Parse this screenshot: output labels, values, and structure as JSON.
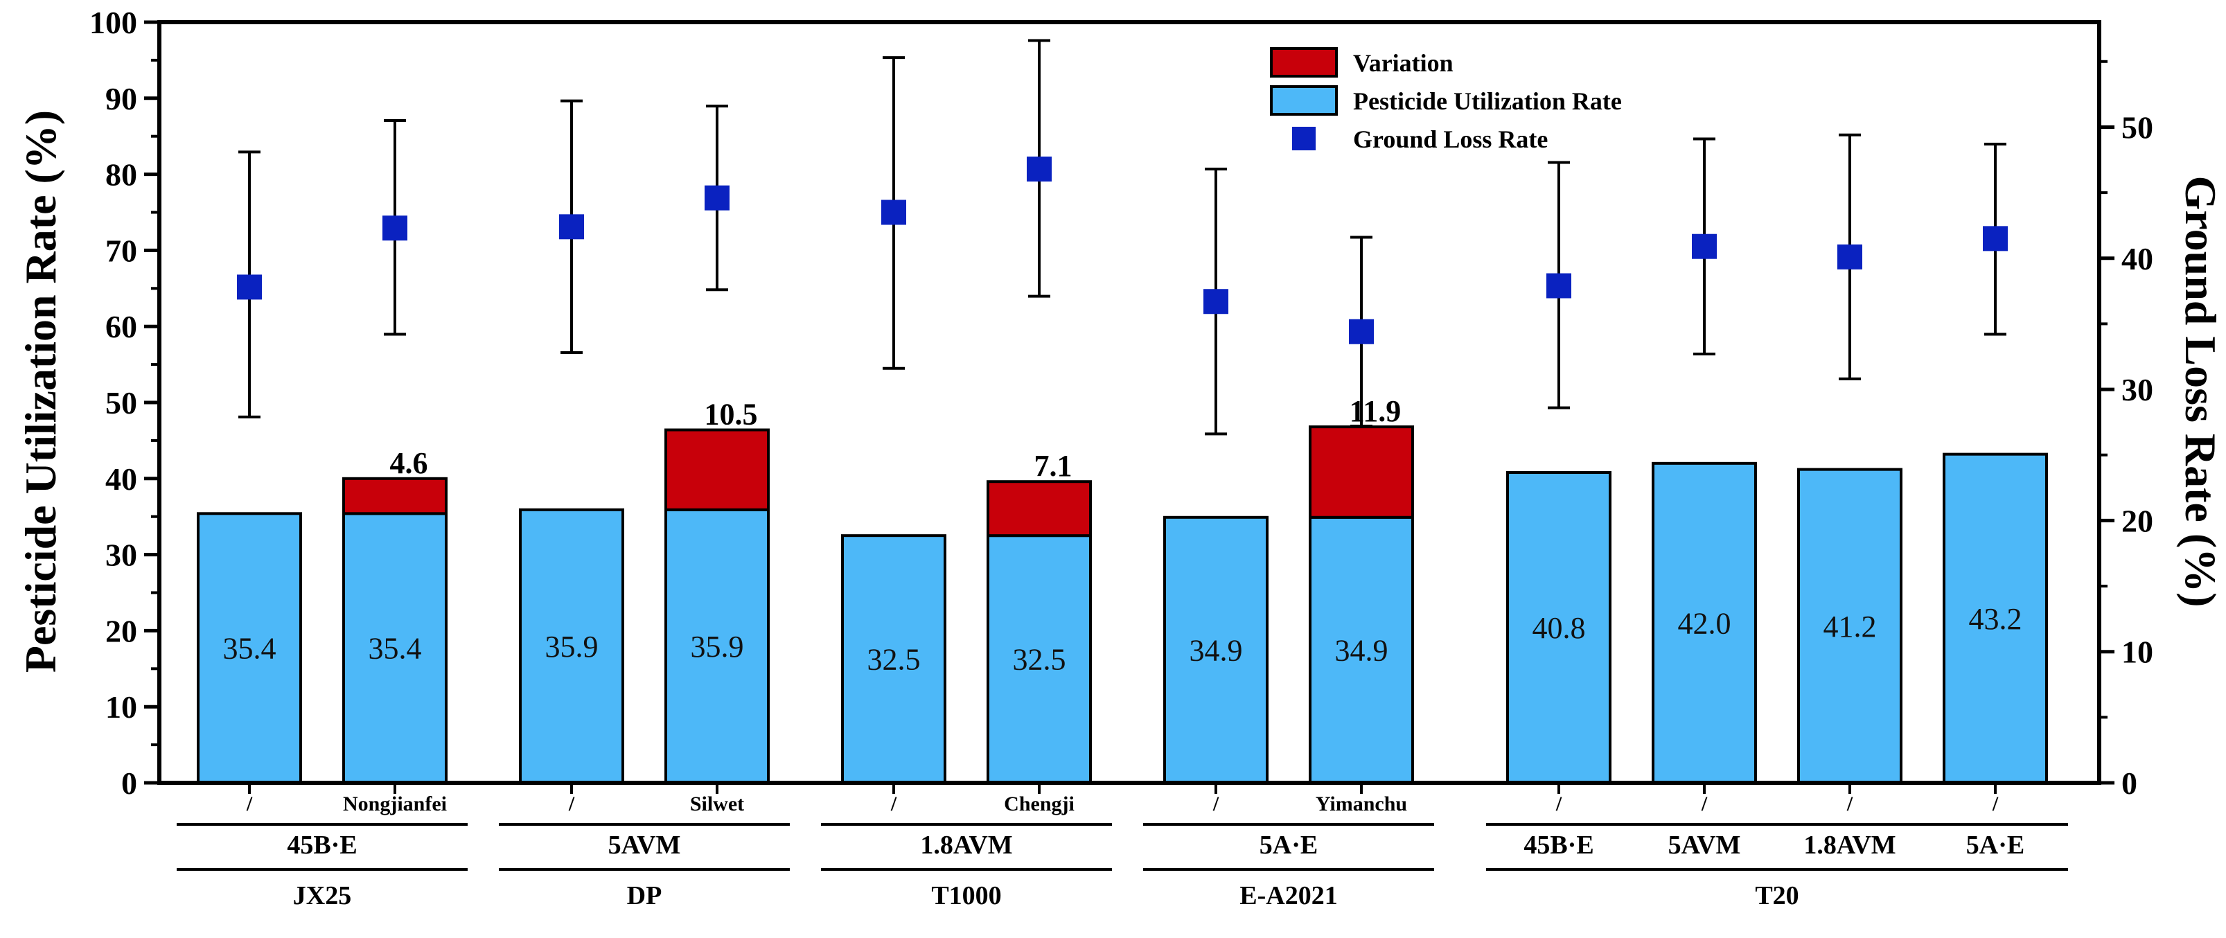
{
  "colors": {
    "utilization": "#4db8f8",
    "variation": "#c8000a",
    "ground_loss": "#0a22c0",
    "axis": "#000000"
  },
  "chart_data": {
    "type": "bar",
    "y_left": {
      "label": "Pesticide Utilization Rate (%)",
      "range": [
        0,
        100
      ],
      "ticks": [
        0,
        10,
        20,
        30,
        40,
        50,
        60,
        70,
        80,
        90,
        100
      ]
    },
    "y_right": {
      "label": "Ground Loss Rate (%)",
      "range": [
        0,
        58
      ],
      "ticks": [
        0,
        10,
        20,
        30,
        40,
        50
      ]
    },
    "legend": {
      "position": "top-center",
      "items": [
        {
          "label": "Variation",
          "kind": "variation"
        },
        {
          "label": "Pesticide Utilization Rate",
          "kind": "utilization"
        },
        {
          "label": "Ground Loss Rate",
          "kind": "ground_loss"
        }
      ]
    },
    "bars": [
      {
        "adjuvant": "/",
        "nozzle": "45B·E",
        "drone": "JX25",
        "utilization": 35.4,
        "utilization_label": "35.4",
        "variation": null,
        "variation_label": "",
        "ground_loss": 37.8,
        "gl_low": 27.9,
        "gl_high": 48.1
      },
      {
        "adjuvant": "Nongjianfei",
        "nozzle": "45B·E",
        "drone": "JX25",
        "utilization": 35.4,
        "utilization_label": "35.4",
        "variation": 4.6,
        "variation_label": "4.6",
        "ground_loss": 42.3,
        "gl_low": 34.2,
        "gl_high": 50.5
      },
      {
        "adjuvant": "/",
        "nozzle": "5AVM",
        "drone": "DP",
        "utilization": 35.9,
        "utilization_label": "35.9",
        "variation": null,
        "variation_label": "",
        "ground_loss": 42.4,
        "gl_low": 32.8,
        "gl_high": 52.0
      },
      {
        "adjuvant": "Silwet",
        "nozzle": "5AVM",
        "drone": "DP",
        "utilization": 35.9,
        "utilization_label": "35.9",
        "variation": 10.5,
        "variation_label": "10.5",
        "ground_loss": 44.6,
        "gl_low": 37.6,
        "gl_high": 51.6
      },
      {
        "adjuvant": "/",
        "nozzle": "1.8AVM",
        "drone": "T1000",
        "utilization": 32.5,
        "utilization_label": "32.5",
        "variation": null,
        "variation_label": "",
        "ground_loss": 43.5,
        "gl_low": 31.6,
        "gl_high": 55.3
      },
      {
        "adjuvant": "Chengji",
        "nozzle": "1.8AVM",
        "drone": "T1000",
        "utilization": 32.5,
        "utilization_label": "32.5",
        "variation": 7.1,
        "variation_label": "7.1",
        "ground_loss": 46.8,
        "gl_low": 37.1,
        "gl_high": 56.6
      },
      {
        "adjuvant": "/",
        "nozzle": "5A·E",
        "drone": "E-A2021",
        "utilization": 34.9,
        "utilization_label": "34.9",
        "variation": null,
        "variation_label": "",
        "ground_loss": 36.7,
        "gl_low": 26.6,
        "gl_high": 46.8
      },
      {
        "adjuvant": "Yimanchu",
        "nozzle": "5A·E",
        "drone": "E-A2021",
        "utilization": 34.9,
        "utilization_label": "34.9",
        "variation": 11.9,
        "variation_label": "11.9",
        "ground_loss": 34.4,
        "gl_low": 27.2,
        "gl_high": 41.6
      },
      {
        "adjuvant": "/",
        "nozzle": "45B·E",
        "drone": "T20",
        "utilization": 40.8,
        "utilization_label": "40.8",
        "variation": null,
        "variation_label": "",
        "ground_loss": 37.9,
        "gl_low": 28.6,
        "gl_high": 47.3
      },
      {
        "adjuvant": "/",
        "nozzle": "5AVM",
        "drone": "T20",
        "utilization": 42.0,
        "utilization_label": "42.0",
        "variation": null,
        "variation_label": "",
        "ground_loss": 40.9,
        "gl_low": 32.7,
        "gl_high": 49.1
      },
      {
        "adjuvant": "/",
        "nozzle": "1.8AVM",
        "drone": "T20",
        "utilization": 41.2,
        "utilization_label": "41.2",
        "variation": null,
        "variation_label": "",
        "ground_loss": 40.1,
        "gl_low": 30.8,
        "gl_high": 49.4
      },
      {
        "adjuvant": "/",
        "nozzle": "5A·E",
        "drone": "T20",
        "utilization": 43.2,
        "utilization_label": "43.2",
        "variation": null,
        "variation_label": "",
        "ground_loss": 41.5,
        "gl_low": 34.2,
        "gl_high": 48.7
      }
    ],
    "nozzle_groups": [
      {
        "label": "45B·E",
        "bars": [
          0,
          1
        ]
      },
      {
        "label": "5AVM",
        "bars": [
          2,
          3
        ]
      },
      {
        "label": "1.8AVM",
        "bars": [
          4,
          5
        ]
      },
      {
        "label": "5A·E",
        "bars": [
          6,
          7
        ]
      },
      {
        "label": "45B·E",
        "bars": [
          8,
          8
        ]
      },
      {
        "label": "5AVM",
        "bars": [
          9,
          9
        ]
      },
      {
        "label": "1.8AVM",
        "bars": [
          10,
          10
        ]
      },
      {
        "label": "5A·E",
        "bars": [
          11,
          11
        ]
      }
    ],
    "drone_groups": [
      {
        "label": "JX25",
        "bars": [
          0,
          1
        ]
      },
      {
        "label": "DP",
        "bars": [
          2,
          3
        ]
      },
      {
        "label": "T1000",
        "bars": [
          4,
          5
        ]
      },
      {
        "label": "E-A2021",
        "bars": [
          6,
          7
        ]
      },
      {
        "label": "T20",
        "bars": [
          8,
          11
        ]
      }
    ]
  }
}
